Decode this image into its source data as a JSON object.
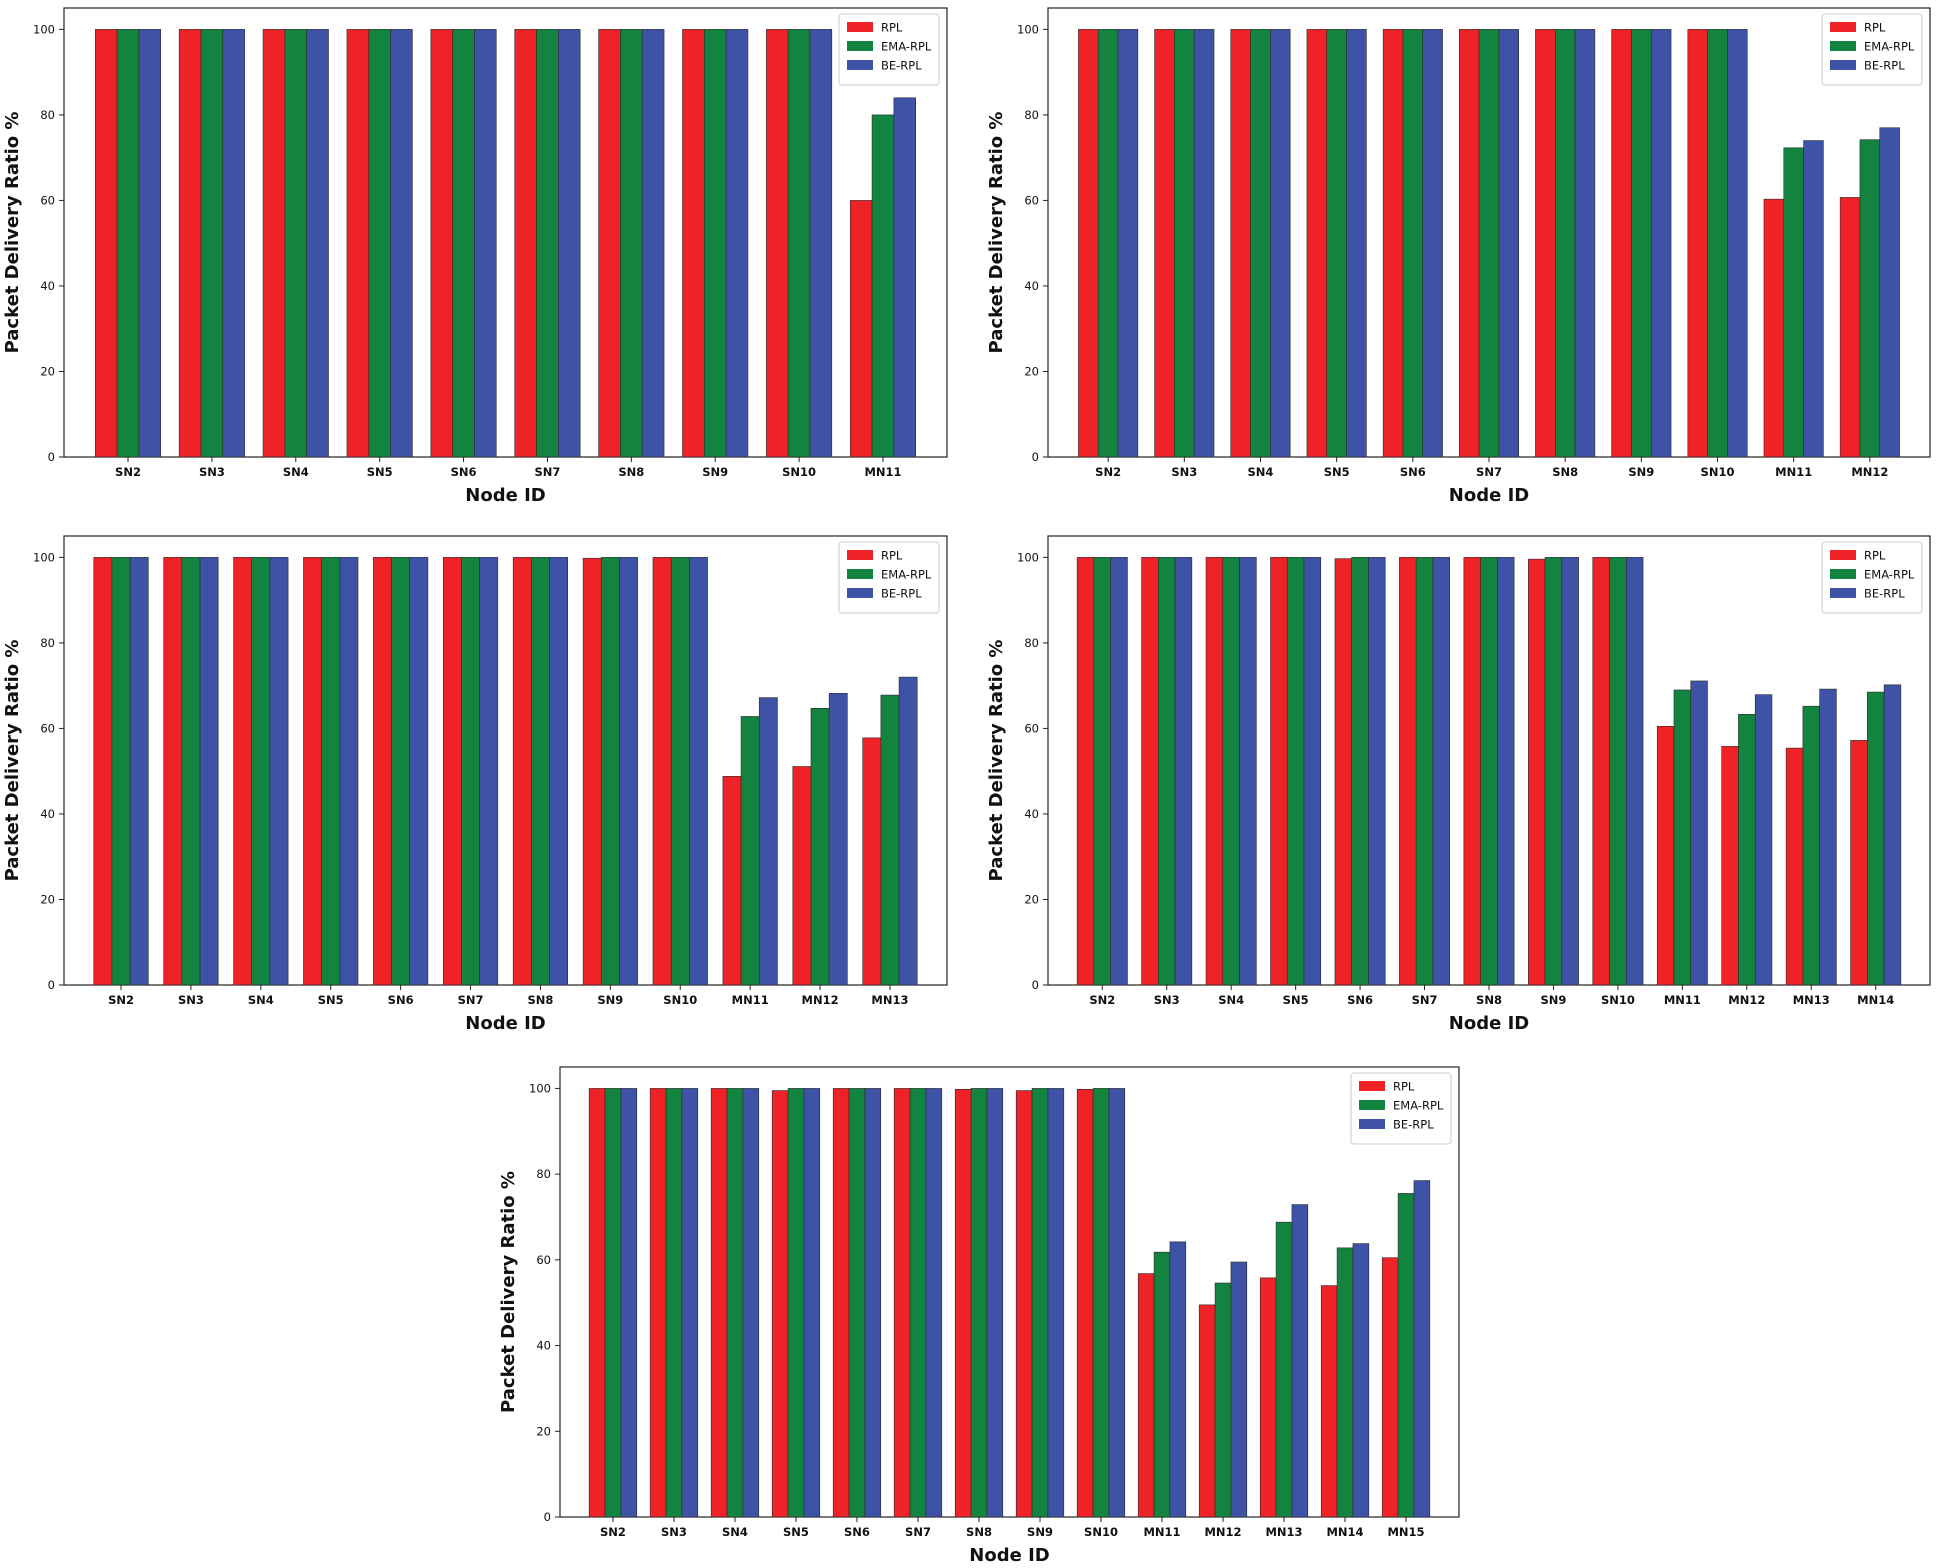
{
  "colors": {
    "rpl": "#ee2227",
    "ema": "#138440",
    "be": "#3e52a6"
  },
  "chart_data": [
    {
      "type": "bar",
      "title": "",
      "xlabel": "Node ID",
      "ylabel": "Packet Delivery Ratio %",
      "ylim": [
        0,
        105
      ],
      "yticks": [
        0,
        20,
        40,
        60,
        80,
        100
      ],
      "legend_position": "top-right",
      "categories": [
        "SN2",
        "SN3",
        "SN4",
        "SN5",
        "SN6",
        "SN7",
        "SN8",
        "SN9",
        "SN10",
        "MN11"
      ],
      "series": [
        {
          "name": "RPL",
          "color": "#ee2227",
          "values": [
            100,
            100,
            100,
            100,
            100,
            100,
            100,
            100,
            100,
            60
          ]
        },
        {
          "name": "EMA-RPL",
          "color": "#138440",
          "values": [
            100,
            100,
            100,
            100,
            100,
            100,
            100,
            100,
            100,
            80
          ]
        },
        {
          "name": "BE-RPL",
          "color": "#3e52a6",
          "values": [
            100,
            100,
            100,
            100,
            100,
            100,
            100,
            100,
            100,
            84
          ]
        }
      ]
    },
    {
      "type": "bar",
      "title": "",
      "xlabel": "Node ID",
      "ylabel": "Packet Delivery Ratio %",
      "ylim": [
        0,
        105
      ],
      "yticks": [
        0,
        20,
        40,
        60,
        80,
        100
      ],
      "legend_position": "top-right",
      "categories": [
        "SN2",
        "SN3",
        "SN4",
        "SN5",
        "SN6",
        "SN7",
        "SN8",
        "SN9",
        "SN10",
        "MN11",
        "MN12"
      ],
      "series": [
        {
          "name": "RPL",
          "color": "#ee2227",
          "values": [
            100,
            100,
            100,
            100,
            100,
            100,
            100,
            100,
            100,
            60.3,
            60.7
          ]
        },
        {
          "name": "EMA-RPL",
          "color": "#138440",
          "values": [
            100,
            100,
            100,
            100,
            100,
            100,
            100,
            100,
            100,
            72.3,
            74.2
          ]
        },
        {
          "name": "BE-RPL",
          "color": "#3e52a6",
          "values": [
            100,
            100,
            100,
            100,
            100,
            100,
            100,
            100,
            100,
            74,
            77
          ]
        }
      ]
    },
    {
      "type": "bar",
      "title": "",
      "xlabel": "Node ID",
      "ylabel": "Packet Delivery Ratio %",
      "ylim": [
        0,
        105
      ],
      "yticks": [
        0,
        20,
        40,
        60,
        80,
        100
      ],
      "legend_position": "top-right",
      "categories": [
        "SN2",
        "SN3",
        "SN4",
        "SN5",
        "SN6",
        "SN7",
        "SN8",
        "SN9",
        "SN10",
        "MN11",
        "MN12",
        "MN13"
      ],
      "series": [
        {
          "name": "RPL",
          "color": "#ee2227",
          "values": [
            100,
            100,
            100,
            100,
            100,
            100,
            100,
            99.8,
            100,
            48.8,
            51.1,
            57.8
          ]
        },
        {
          "name": "EMA-RPL",
          "color": "#138440",
          "values": [
            100,
            100,
            100,
            100,
            100,
            100,
            100,
            100,
            100,
            62.8,
            64.7,
            67.8
          ]
        },
        {
          "name": "BE-RPL",
          "color": "#3e52a6",
          "values": [
            100,
            100,
            100,
            100,
            100,
            100,
            100,
            100,
            100,
            67.2,
            68.2,
            72
          ]
        }
      ]
    },
    {
      "type": "bar",
      "title": "",
      "xlabel": "Node ID",
      "ylabel": "Packet Delivery Ratio %",
      "ylim": [
        0,
        105
      ],
      "yticks": [
        0,
        20,
        40,
        60,
        80,
        100
      ],
      "legend_position": "top-right",
      "categories": [
        "SN2",
        "SN3",
        "SN4",
        "SN5",
        "SN6",
        "SN7",
        "SN8",
        "SN9",
        "SN10",
        "MN11",
        "MN12",
        "MN13",
        "MN14"
      ],
      "series": [
        {
          "name": "RPL",
          "color": "#ee2227",
          "values": [
            100,
            100,
            100,
            100,
            99.7,
            100,
            100,
            99.6,
            100,
            60.5,
            55.8,
            55.4,
            57.2
          ]
        },
        {
          "name": "EMA-RPL",
          "color": "#138440",
          "values": [
            100,
            100,
            100,
            100,
            100,
            100,
            100,
            100,
            100,
            69,
            63.3,
            65.2,
            68.5
          ]
        },
        {
          "name": "BE-RPL",
          "color": "#3e52a6",
          "values": [
            100,
            100,
            100,
            100,
            100,
            100,
            100,
            100,
            100,
            71.1,
            67.9,
            69.2,
            70.2
          ]
        }
      ]
    },
    {
      "type": "bar",
      "title": "",
      "xlabel": "Node ID",
      "ylabel": "Packet Delivery Ratio %",
      "ylim": [
        0,
        105
      ],
      "yticks": [
        0,
        20,
        40,
        60,
        80,
        100
      ],
      "legend_position": "top-right",
      "categories": [
        "SN2",
        "SN3",
        "SN4",
        "SN5",
        "SN6",
        "SN7",
        "SN8",
        "SN9",
        "SN10",
        "MN11",
        "MN12",
        "MN13",
        "MN14",
        "MN15"
      ],
      "series": [
        {
          "name": "RPL",
          "color": "#ee2227",
          "values": [
            100,
            100,
            100,
            99.5,
            100,
            100,
            99.8,
            99.5,
            99.8,
            56.8,
            49.5,
            55.8,
            54,
            60.5
          ]
        },
        {
          "name": "EMA-RPL",
          "color": "#138440",
          "values": [
            100,
            100,
            100,
            100,
            100,
            100,
            100,
            100,
            100,
            61.8,
            54.6,
            68.8,
            62.8,
            75.5
          ]
        },
        {
          "name": "BE-RPL",
          "color": "#3e52a6",
          "values": [
            100,
            100,
            100,
            100,
            100,
            100,
            100,
            100,
            100,
            64.2,
            59.5,
            72.9,
            63.8,
            78.5
          ]
        }
      ]
    }
  ]
}
